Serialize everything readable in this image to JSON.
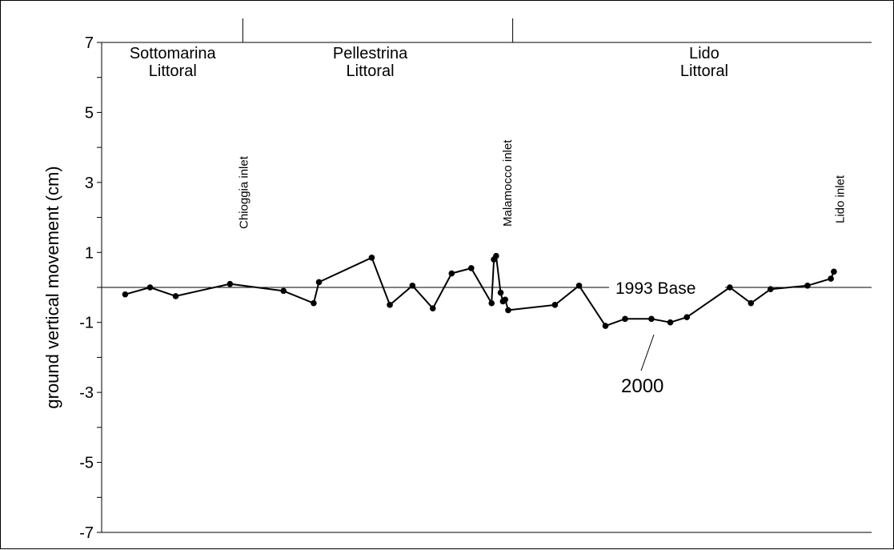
{
  "chart_data": {
    "type": "line",
    "title": "",
    "ylabel": "ground vertical movement (cm)",
    "xlabel": "",
    "ylim": [
      -7,
      7
    ],
    "xlim": [
      0,
      1000
    ],
    "yticks": [
      -7,
      -6,
      -5,
      -4,
      -3,
      -2,
      -1,
      0,
      1,
      2,
      3,
      4,
      5,
      6,
      7
    ],
    "ytick_labels": [
      "-7",
      "",
      "-5",
      "",
      "-3",
      "",
      "-1",
      "",
      "1",
      "",
      "3",
      "",
      "5",
      "",
      "7"
    ],
    "grid": false,
    "regions": [
      {
        "line1": "Sottomarina",
        "line2": "Littoral",
        "center_x": 73
      },
      {
        "line1": "Pellestrina",
        "line2": "Littoral",
        "center_x": 335
      },
      {
        "line1": "Lido",
        "line2": "Littoral",
        "center_x": 778
      }
    ],
    "boundaries": [
      166,
      524
    ],
    "inlets": [
      {
        "label": "Chioggia inlet",
        "x": 166
      },
      {
        "label": "Malamocco inlet",
        "x": 516
      },
      {
        "label": "Lido inlet",
        "x": 957
      }
    ],
    "baseline": {
      "label": "1993 Base",
      "y": 0
    },
    "series": [
      {
        "name": "2000",
        "x": [
          10,
          43,
          77,
          149,
          220,
          260,
          267,
          337,
          361,
          391,
          418,
          443,
          469,
          496,
          499,
          502,
          508,
          511,
          514,
          518,
          580,
          612,
          647,
          673,
          708,
          733,
          755,
          812,
          840,
          866,
          915,
          946,
          950
        ],
        "y": [
          -0.2,
          0.0,
          -0.25,
          0.1,
          -0.1,
          -0.45,
          0.15,
          0.85,
          -0.5,
          0.05,
          -0.6,
          0.4,
          0.55,
          -0.45,
          0.8,
          0.9,
          -0.15,
          -0.4,
          -0.35,
          -0.65,
          -0.5,
          0.05,
          -1.1,
          -0.9,
          -0.9,
          -1.0,
          -0.85,
          0.0,
          -0.45,
          -0.05,
          0.05,
          0.25,
          0.45
        ]
      }
    ]
  }
}
